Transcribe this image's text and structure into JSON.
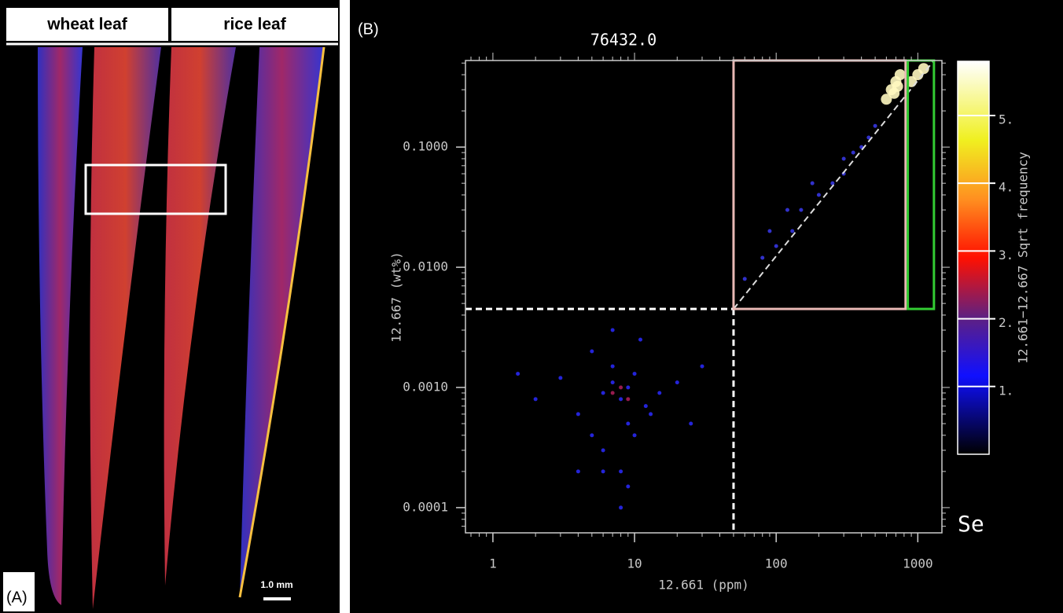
{
  "panel_a": {
    "labels": [
      "wheat leaf",
      "rice leaf"
    ],
    "tag": "(A)",
    "scale_bar": "1.0 mm"
  },
  "chart_data": {
    "type": "scatter",
    "tag": "(B)",
    "title": "76432.0",
    "xlabel": "12.661 (ppm)",
    "ylabel": "12.667 (wt%)",
    "log_x": true,
    "log_y": true,
    "xlim": [
      0.64,
      1480
    ],
    "ylim": [
      6.17e-05,
      0.525
    ],
    "xticks": [
      1,
      10,
      100,
      1000
    ],
    "yticks": [
      {
        "value": 0.1,
        "label": "0.1000"
      },
      {
        "value": 0.01,
        "label": "0.0100"
      },
      {
        "value": 0.001,
        "label": "0.0010"
      },
      {
        "value": 0.0001,
        "label": "0.0001"
      }
    ],
    "series": [
      {
        "color": "#2a2aff",
        "x": [
          3,
          4,
          5,
          6,
          7,
          8,
          9,
          10,
          12,
          15,
          6,
          8,
          10,
          7,
          9,
          5,
          11,
          13,
          20,
          2,
          1.5,
          25,
          8,
          6,
          9,
          7,
          4,
          30
        ],
        "y": [
          0.0012,
          0.0006,
          0.002,
          0.0009,
          0.0011,
          0.0008,
          0.0005,
          0.0013,
          0.0007,
          0.0009,
          0.0003,
          0.0002,
          0.0004,
          0.0015,
          0.001,
          0.0004,
          0.0025,
          0.0006,
          0.0011,
          0.0008,
          0.0013,
          0.0005,
          0.0001,
          0.0002,
          0.00015,
          0.003,
          0.0002,
          0.0015
        ]
      },
      {
        "color": "#3a3aee",
        "x": [
          60,
          80,
          100,
          130,
          150,
          200,
          250,
          300,
          350,
          400,
          450,
          500,
          120,
          180,
          300,
          90
        ],
        "y": [
          0.008,
          0.012,
          0.015,
          0.02,
          0.03,
          0.04,
          0.05,
          0.06,
          0.09,
          0.1,
          0.12,
          0.15,
          0.03,
          0.05,
          0.08,
          0.02
        ]
      },
      {
        "color": "#b0205a",
        "x": [
          7,
          8,
          9
        ],
        "y": [
          0.0009,
          0.001,
          0.0008
        ]
      },
      {
        "color": "#fff8c0",
        "x": [
          600,
          650,
          700,
          750,
          680,
          900,
          1000,
          1100,
          720
        ],
        "y": [
          0.25,
          0.3,
          0.35,
          0.4,
          0.28,
          0.35,
          0.4,
          0.45,
          0.32
        ]
      }
    ],
    "threshold_x": 50,
    "threshold_y": 0.0045,
    "boxes": [
      {
        "color": "#e8b8b4",
        "xlim": [
          50,
          820
        ],
        "ylim": [
          0.0045,
          0.525
        ]
      },
      {
        "color": "#33cc33",
        "xlim": [
          850,
          1300
        ],
        "ylim": [
          0.0045,
          0.525
        ]
      }
    ],
    "colorbar": {
      "label": "12.661−12.667  Sqrt frequency",
      "lim": [
        0,
        5.8
      ],
      "ticks": [
        {
          "value": 1,
          "label": "1."
        },
        {
          "value": 2,
          "label": "2."
        },
        {
          "value": 3,
          "label": "3."
        },
        {
          "value": 4,
          "label": "4."
        },
        {
          "value": 5,
          "label": "5."
        }
      ]
    },
    "element": "Se"
  }
}
